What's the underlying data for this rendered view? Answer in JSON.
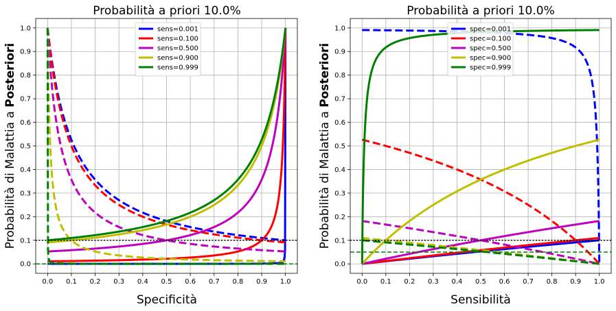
{
  "chart_data": [
    {
      "type": "line",
      "title": "Probabilità a priori 10.0%",
      "xlabel": "Specificità",
      "ylabel_normal": "Probabilità di Malattia a ",
      "ylabel_bold": "Posteriori",
      "xlim": [
        -0.05,
        1.05
      ],
      "ylim": [
        -0.04,
        1.04
      ],
      "xticks": [
        "0.0",
        "0.1",
        "0.2",
        "0.3",
        "0.4",
        "0.5",
        "0.6",
        "0.7",
        "0.8",
        "0.9",
        "1.0"
      ],
      "yticks": [
        "0.0",
        "0.1",
        "0.2",
        "0.3",
        "0.4",
        "0.5",
        "0.6",
        "0.7",
        "0.8",
        "0.9",
        "1.0"
      ],
      "grid": true,
      "legend_position": "top-center",
      "prior": 0.1,
      "reference_lines": [
        {
          "y": 0.1,
          "style": "dotted",
          "color": "#000000"
        },
        {
          "y": 0.0,
          "style": "dashed",
          "color": "#008000"
        }
      ],
      "series": [
        {
          "name": "sens=0.001",
          "param": 0.001,
          "color": "#0000ff"
        },
        {
          "name": "sens=0.100",
          "param": 0.1,
          "color": "#ff0000"
        },
        {
          "name": "sens=0.500",
          "param": 0.5,
          "color": "#bf00bf"
        },
        {
          "name": "sens=0.900",
          "param": 0.9,
          "color": "#bfbf00"
        },
        {
          "name": "sens=0.999",
          "param": 0.999,
          "color": "#008000"
        }
      ]
    },
    {
      "type": "line",
      "title": "Probabilità a priori 10.0%",
      "xlabel": "Sensibilità",
      "ylabel_normal": "Probabilità di Malattia a ",
      "ylabel_bold": "Posteriori",
      "xlim": [
        -0.05,
        1.05
      ],
      "ylim": [
        -0.04,
        1.04
      ],
      "xticks": [
        "0.0",
        "0.1",
        "0.2",
        "0.3",
        "0.4",
        "0.5",
        "0.6",
        "0.7",
        "0.8",
        "0.9",
        "1.0"
      ],
      "yticks": [
        "0.0",
        "0.1",
        "0.2",
        "0.3",
        "0.4",
        "0.5",
        "0.6",
        "0.7",
        "0.8",
        "0.9",
        "1.0"
      ],
      "grid": true,
      "legend_position": "top-center",
      "prior": 0.1,
      "reference_lines": [
        {
          "y": 0.1,
          "style": "dotted",
          "color": "#000000"
        },
        {
          "y": 0.05,
          "style": "dashed",
          "color": "#008000"
        }
      ],
      "series": [
        {
          "name": "spec=0.001",
          "param": 0.001,
          "color": "#0000ff"
        },
        {
          "name": "spec=0.100",
          "param": 0.1,
          "color": "#ff0000"
        },
        {
          "name": "spec=0.500",
          "param": 0.5,
          "color": "#bf00bf"
        },
        {
          "name": "spec=0.900",
          "param": 0.9,
          "color": "#bfbf00"
        },
        {
          "name": "spec=0.999",
          "param": 0.999,
          "color": "#008000"
        }
      ]
    }
  ]
}
